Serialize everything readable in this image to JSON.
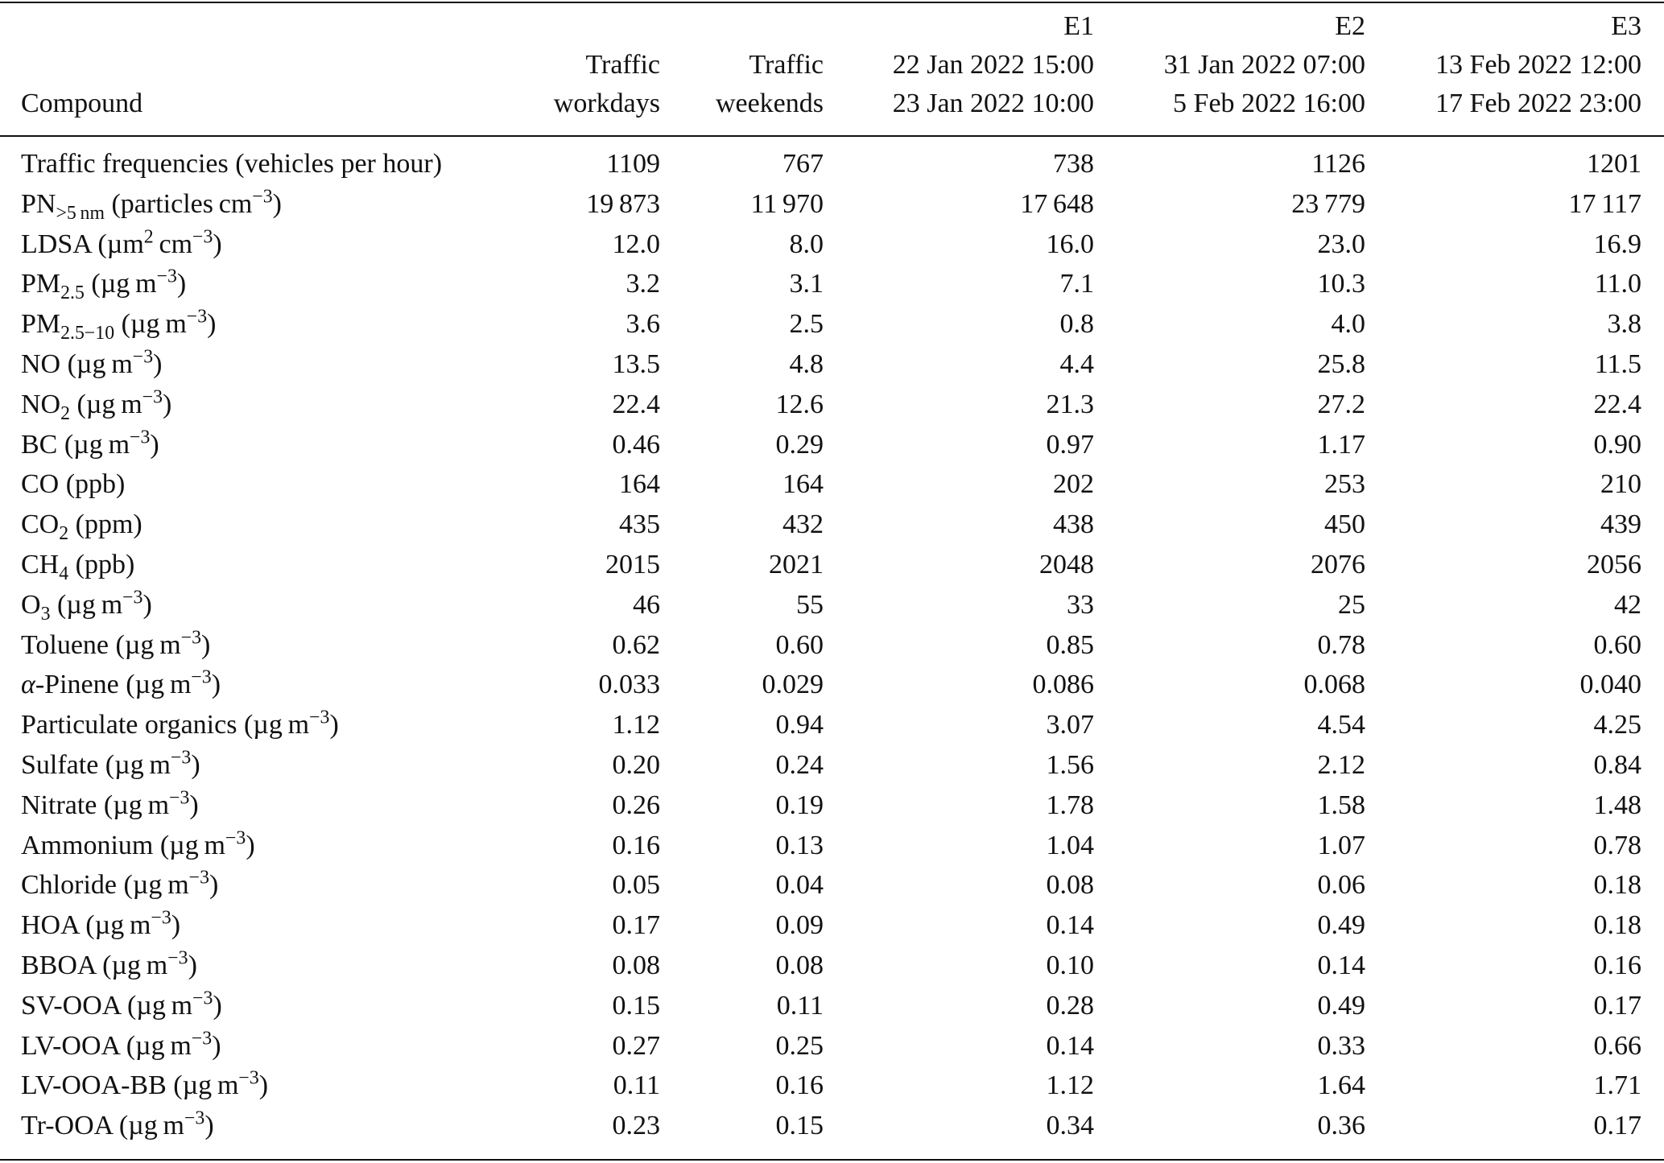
{
  "table": {
    "header": [
      [
        "Compound"
      ],
      [
        "Traffic",
        "workdays"
      ],
      [
        "Traffic",
        "weekends"
      ],
      [
        "E1",
        "22 Jan 2022 15:00",
        "23 Jan 2022 10:00"
      ],
      [
        "E2",
        "31 Jan 2022 07:00",
        "5 Feb 2022 16:00"
      ],
      [
        "E3",
        "13 Feb 2022 12:00",
        "17 Feb 2022 23:00"
      ]
    ],
    "rows": [
      {
        "compound": [
          "Traffic frequencies (vehicles per hour)"
        ],
        "cells": [
          "1109",
          "767",
          "738",
          "1126",
          "1201"
        ]
      },
      {
        "compound": [
          "PN",
          {
            "sub": ">5 nm"
          },
          " (particles cm",
          {
            "sup": "−3"
          },
          ")"
        ],
        "cells": [
          "19 873",
          "11 970",
          "17 648",
          "23 779",
          "17 117"
        ]
      },
      {
        "compound": [
          "LDSA (µm",
          {
            "sup": "2"
          },
          " cm",
          {
            "sup": "−3"
          },
          ")"
        ],
        "cells": [
          "12.0",
          "8.0",
          "16.0",
          "23.0",
          "16.9"
        ]
      },
      {
        "compound": [
          "PM",
          {
            "sub": "2.5"
          },
          " (µg m",
          {
            "sup": "−3"
          },
          ")"
        ],
        "cells": [
          "3.2",
          "3.1",
          "7.1",
          "10.3",
          "11.0"
        ]
      },
      {
        "compound": [
          "PM",
          {
            "sub": "2.5−10"
          },
          " (µg m",
          {
            "sup": "−3"
          },
          ")"
        ],
        "cells": [
          "3.6",
          "2.5",
          "0.8",
          "4.0",
          "3.8"
        ]
      },
      {
        "compound": [
          "NO (µg m",
          {
            "sup": "−3"
          },
          ")"
        ],
        "cells": [
          "13.5",
          "4.8",
          "4.4",
          "25.8",
          "11.5"
        ]
      },
      {
        "compound": [
          "NO",
          {
            "sub": "2"
          },
          " (µg m",
          {
            "sup": "−3"
          },
          ")"
        ],
        "cells": [
          "22.4",
          "12.6",
          "21.3",
          "27.2",
          "22.4"
        ]
      },
      {
        "compound": [
          "BC (µg m",
          {
            "sup": "−3"
          },
          ")"
        ],
        "cells": [
          "0.46",
          "0.29",
          "0.97",
          "1.17",
          "0.90"
        ]
      },
      {
        "compound": [
          "CO (ppb)"
        ],
        "cells": [
          "164",
          "164",
          "202",
          "253",
          "210"
        ]
      },
      {
        "compound": [
          "CO",
          {
            "sub": "2"
          },
          " (ppm)"
        ],
        "cells": [
          "435",
          "432",
          "438",
          "450",
          "439"
        ]
      },
      {
        "compound": [
          "CH",
          {
            "sub": "4"
          },
          " (ppb)"
        ],
        "cells": [
          "2015",
          "2021",
          "2048",
          "2076",
          "2056"
        ]
      },
      {
        "compound": [
          "O",
          {
            "sub": "3"
          },
          " (µg m",
          {
            "sup": "−3"
          },
          ")"
        ],
        "cells": [
          "46",
          "55",
          "33",
          "25",
          "42"
        ]
      },
      {
        "compound": [
          "Toluene (µg m",
          {
            "sup": "−3"
          },
          ")"
        ],
        "cells": [
          "0.62",
          "0.60",
          "0.85",
          "0.78",
          "0.60"
        ]
      },
      {
        "compound": [
          {
            "i": "α"
          },
          "-Pinene (µg m",
          {
            "sup": "−3"
          },
          ")"
        ],
        "cells": [
          "0.033",
          "0.029",
          "0.086",
          "0.068",
          "0.040"
        ]
      },
      {
        "compound": [
          "Particulate organics (µg m",
          {
            "sup": "−3"
          },
          ")"
        ],
        "cells": [
          "1.12",
          "0.94",
          "3.07",
          "4.54",
          "4.25"
        ]
      },
      {
        "compound": [
          "Sulfate (µg m",
          {
            "sup": "−3"
          },
          ")"
        ],
        "cells": [
          "0.20",
          "0.24",
          "1.56",
          "2.12",
          "0.84"
        ]
      },
      {
        "compound": [
          "Nitrate (µg m",
          {
            "sup": "−3"
          },
          ")"
        ],
        "cells": [
          "0.26",
          "0.19",
          "1.78",
          "1.58",
          "1.48"
        ]
      },
      {
        "compound": [
          "Ammonium (µg m",
          {
            "sup": "−3"
          },
          ")"
        ],
        "cells": [
          "0.16",
          "0.13",
          "1.04",
          "1.07",
          "0.78"
        ]
      },
      {
        "compound": [
          "Chloride (µg m",
          {
            "sup": "−3"
          },
          ")"
        ],
        "cells": [
          "0.05",
          "0.04",
          "0.08",
          "0.06",
          "0.18"
        ]
      },
      {
        "compound": [
          "HOA (µg m",
          {
            "sup": "−3"
          },
          ")"
        ],
        "cells": [
          "0.17",
          "0.09",
          "0.14",
          "0.49",
          "0.18"
        ]
      },
      {
        "compound": [
          "BBOA (µg m",
          {
            "sup": "−3"
          },
          ")"
        ],
        "cells": [
          "0.08",
          "0.08",
          "0.10",
          "0.14",
          "0.16"
        ]
      },
      {
        "compound": [
          "SV-OOA (µg m",
          {
            "sup": "−3"
          },
          ")"
        ],
        "cells": [
          "0.15",
          "0.11",
          "0.28",
          "0.49",
          "0.17"
        ]
      },
      {
        "compound": [
          "LV-OOA (µg m",
          {
            "sup": "−3"
          },
          ")"
        ],
        "cells": [
          "0.27",
          "0.25",
          "0.14",
          "0.33",
          "0.66"
        ]
      },
      {
        "compound": [
          "LV-OOA-BB (µg m",
          {
            "sup": "−3"
          },
          ")"
        ],
        "cells": [
          "0.11",
          "0.16",
          "1.12",
          "1.64",
          "1.71"
        ]
      },
      {
        "compound": [
          "Tr-OOA (µg m",
          {
            "sup": "−3"
          },
          ")"
        ],
        "cells": [
          "0.23",
          "0.15",
          "0.34",
          "0.36",
          "0.17"
        ]
      }
    ]
  }
}
